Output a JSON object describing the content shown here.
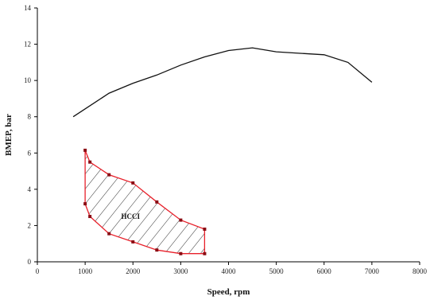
{
  "chart_data": {
    "type": "line",
    "xlabel": "Speed, rpm",
    "ylabel": "BMEP, bar",
    "xlim": [
      0,
      8000
    ],
    "ylim": [
      0,
      14
    ],
    "x_ticks": [
      0,
      1000,
      2000,
      3000,
      4000,
      5000,
      6000,
      7000,
      8000
    ],
    "y_ticks": [
      0,
      2,
      4,
      6,
      8,
      10,
      12,
      14
    ],
    "grid": false,
    "legend": "none",
    "series": [
      {
        "color": "#111111",
        "marker": "none",
        "points": [
          [
            750,
            8.0
          ],
          [
            1500,
            9.3
          ],
          [
            2000,
            9.85
          ],
          [
            2500,
            10.3
          ],
          [
            3000,
            10.85
          ],
          [
            3500,
            11.3
          ],
          [
            4000,
            11.65
          ],
          [
            4500,
            11.8
          ],
          [
            5000,
            11.58
          ],
          [
            5500,
            11.5
          ],
          [
            6000,
            11.42
          ],
          [
            6500,
            11.0
          ],
          [
            7000,
            9.9
          ]
        ]
      }
    ],
    "regions": [
      {
        "label": "HCCI",
        "color": "#e8202a",
        "hatch": "diagonal",
        "upper": [
          [
            1000,
            6.15
          ],
          [
            1100,
            5.5
          ],
          [
            1500,
            4.8
          ],
          [
            2000,
            4.35
          ],
          [
            2500,
            3.3
          ],
          [
            3000,
            2.3
          ],
          [
            3500,
            1.8
          ]
        ],
        "lower": [
          [
            1000,
            3.2
          ],
          [
            1100,
            2.5
          ],
          [
            1500,
            1.55
          ],
          [
            2000,
            1.1
          ],
          [
            2500,
            0.65
          ],
          [
            3000,
            0.45
          ],
          [
            3500,
            0.45
          ]
        ]
      }
    ],
    "annotations": [
      {
        "text": "HCCI",
        "x": 1950,
        "y": 2.5
      }
    ]
  }
}
